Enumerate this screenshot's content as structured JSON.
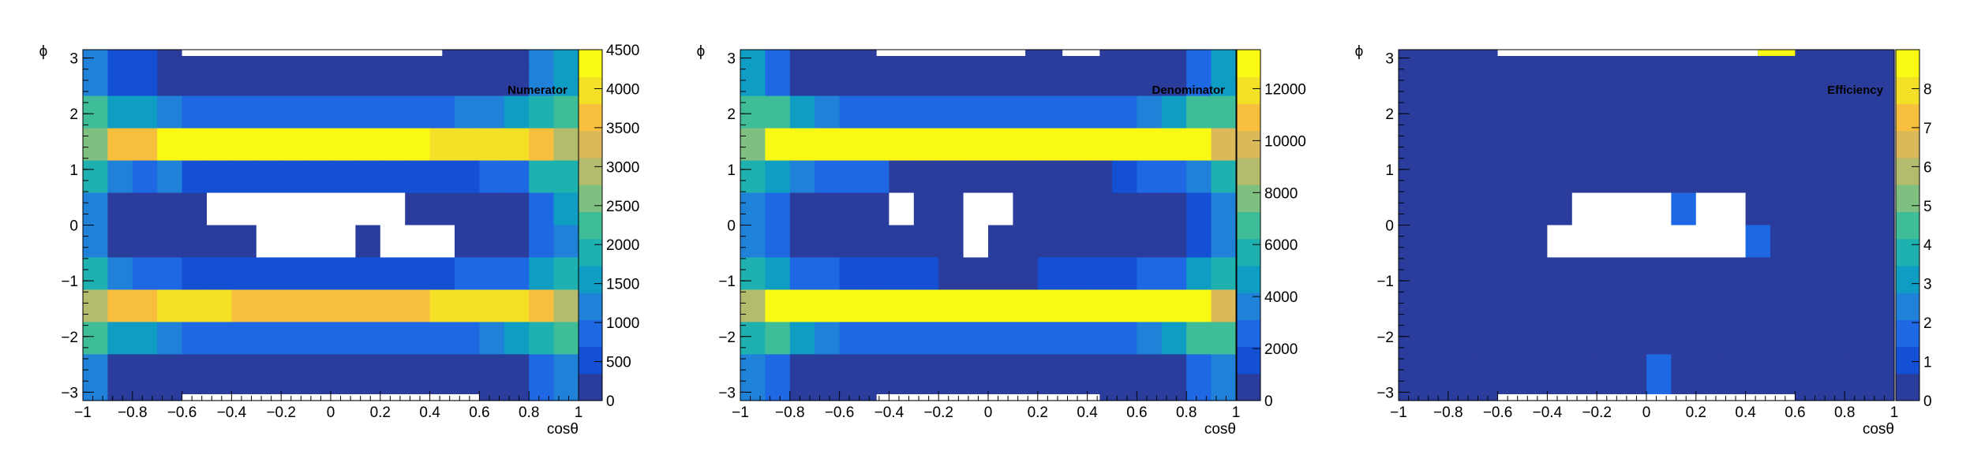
{
  "figure": {
    "background": "#ffffff"
  },
  "palette": [
    "#2b3d9c",
    "#1450d4",
    "#1f68e3",
    "#1f82d8",
    "#0f9dc4",
    "#1fb0b0",
    "#3fbc98",
    "#7fc080",
    "#b2bc6c",
    "#dbb95a",
    "#f8bf3f",
    "#f5e028",
    "#f9f915"
  ],
  "chart_data": [
    {
      "type": "heatmap",
      "title": "Numerator",
      "xlabel": "cosθ",
      "ylabel": "ϕ",
      "xlim": [
        -1,
        1
      ],
      "ylim": [
        -3.15,
        3.15
      ],
      "x_ticks": [
        "−1",
        "−0.8",
        "−0.6",
        "−0.4",
        "−0.2",
        "0",
        "0.2",
        "0.4",
        "0.6",
        "0.8",
        "1"
      ],
      "y_ticks": [
        "−3",
        "−2",
        "−1",
        "0",
        "1",
        "2",
        "3"
      ],
      "zlim": [
        0,
        4500
      ],
      "z_ticks": [
        "0",
        "500",
        "1000",
        "1500",
        "2000",
        "2500",
        "3000",
        "3500",
        "4000",
        "4500"
      ],
      "x_bins": 20,
      "y_bins": 10,
      "z": [
        [
          1200,
          600,
          600,
          300,
          300,
          300,
          300,
          300,
          300,
          300,
          300,
          300,
          300,
          300,
          300,
          300,
          300,
          300,
          1200,
          1600
        ],
        [
          2200,
          1400,
          1400,
          1100,
          900,
          900,
          900,
          900,
          900,
          900,
          900,
          900,
          900,
          1000,
          1000,
          1100,
          1100,
          1400,
          2000,
          2200
        ],
        [
          2700,
          3700,
          3700,
          4300,
          4500,
          4500,
          4500,
          4500,
          4500,
          4500,
          4500,
          4500,
          4500,
          4500,
          4100,
          4100,
          3900,
          3900,
          3800,
          2900
        ],
        [
          1900,
          1200,
          800,
          1200,
          400,
          400,
          400,
          400,
          400,
          400,
          400,
          400,
          400,
          400,
          400,
          400,
          1000,
          1000,
          1800,
          1900
        ],
        [
          1300,
          300,
          300,
          300,
          300,
          null,
          null,
          null,
          null,
          null,
          null,
          null,
          null,
          300,
          300,
          300,
          300,
          300,
          1000,
          1400
        ],
        [
          1300,
          300,
          300,
          300,
          300,
          300,
          300,
          null,
          null,
          null,
          null,
          300,
          null,
          null,
          null,
          300,
          300,
          300,
          1000,
          1300
        ],
        [
          1800,
          1300,
          900,
          900,
          400,
          400,
          400,
          400,
          400,
          400,
          400,
          400,
          400,
          400,
          400,
          900,
          900,
          1000,
          1600,
          1900
        ],
        [
          3000,
          3800,
          3800,
          4000,
          4100,
          3900,
          3600,
          3600,
          3600,
          3600,
          3600,
          3600,
          3600,
          3600,
          3900,
          4100,
          4100,
          3900,
          3500,
          3000
        ],
        [
          2200,
          1700,
          1700,
          1300,
          1000,
          1000,
          900,
          900,
          900,
          900,
          900,
          700,
          900,
          900,
          1000,
          1000,
          1300,
          1400,
          2000,
          2300
        ],
        [
          1100,
          300,
          300,
          300,
          300,
          300,
          300,
          300,
          300,
          300,
          300,
          300,
          300,
          300,
          300,
          300,
          300,
          300,
          1000,
          1300
        ]
      ],
      "empty_rows": {
        "top": {
          "x_from": -0.6,
          "x_to": 0.45
        },
        "bottom": {
          "x_from": -0.6,
          "x_to": 0.6
        }
      }
    },
    {
      "type": "heatmap",
      "title": "Denominator",
      "xlabel": "cosθ",
      "ylabel": "ϕ",
      "xlim": [
        -1,
        1
      ],
      "ylim": [
        -3.15,
        3.15
      ],
      "x_ticks": [
        "−1",
        "−0.8",
        "−0.6",
        "−0.4",
        "−0.2",
        "0",
        "0.2",
        "0.4",
        "0.6",
        "0.8",
        "1"
      ],
      "y_ticks": [
        "−3",
        "−2",
        "−1",
        "0",
        "1",
        "2",
        "3"
      ],
      "zlim": [
        0,
        13500
      ],
      "z_ticks": [
        "0",
        "2000",
        "4000",
        "6000",
        "8000",
        "10000",
        "12000"
      ],
      "x_bins": 20,
      "y_bins": 10,
      "z": [
        [
          5000,
          2500,
          1000,
          1000,
          1000,
          1000,
          1000,
          1000,
          1000,
          1000,
          1000,
          1000,
          1000,
          1000,
          1000,
          1000,
          1000,
          1000,
          2500,
          5000
        ],
        [
          6500,
          6500,
          5000,
          4000,
          3000,
          3000,
          2500,
          2500,
          2500,
          2500,
          2500,
          2500,
          2500,
          2500,
          3000,
          3000,
          4000,
          5000,
          6500,
          7000
        ],
        [
          8000,
          13500,
          13500,
          13500,
          13500,
          13500,
          13500,
          13500,
          13500,
          13500,
          13500,
          13500,
          13500,
          13500,
          13500,
          13500,
          13500,
          13500,
          13500,
          10000
        ],
        [
          5500,
          5000,
          4000,
          3000,
          2500,
          3000,
          1000,
          1000,
          1000,
          1000,
          1000,
          1000,
          1000,
          1000,
          1000,
          2000,
          2500,
          3000,
          4000,
          5500
        ],
        [
          4000,
          2500,
          1000,
          1000,
          1000,
          1000,
          null,
          1000,
          1000,
          null,
          null,
          1000,
          1000,
          1000,
          1000,
          1000,
          1000,
          1000,
          2000,
          4000
        ],
        [
          4000,
          2500,
          1000,
          1000,
          1000,
          1000,
          1000,
          1000,
          1000,
          null,
          1000,
          1000,
          1000,
          1000,
          1000,
          1000,
          1000,
          1000,
          2000,
          4000
        ],
        [
          5500,
          4500,
          3000,
          2500,
          2000,
          2000,
          2000,
          2000,
          1000,
          1000,
          1000,
          1000,
          2000,
          2000,
          2000,
          2000,
          2500,
          3000,
          4500,
          5500
        ],
        [
          8500,
          13500,
          13500,
          13500,
          13500,
          13500,
          13500,
          13500,
          13500,
          13500,
          13500,
          13500,
          13500,
          13500,
          13500,
          13500,
          13500,
          13500,
          13500,
          9500
        ],
        [
          5500,
          6500,
          5000,
          3500,
          3000,
          3000,
          2500,
          2500,
          2500,
          2500,
          2500,
          2500,
          2500,
          2500,
          2500,
          3000,
          3500,
          5000,
          6500,
          6500
        ],
        [
          4000,
          2500,
          1000,
          1000,
          1000,
          1000,
          1000,
          1000,
          1000,
          1000,
          1000,
          1000,
          1000,
          1000,
          1000,
          1000,
          1000,
          1000,
          2500,
          4000
        ]
      ],
      "empty_rows": {
        "top": {
          "x_from": -0.45,
          "x_to": 0.15
        },
        "top2": {
          "x_from": 0.3,
          "x_to": 0.45
        },
        "bottom": {
          "x_from": -0.45,
          "x_to": 0.45
        }
      }
    },
    {
      "type": "heatmap",
      "title": "Efficiency",
      "xlabel": "cosθ",
      "ylabel": "ϕ",
      "xlim": [
        -1,
        1
      ],
      "ylim": [
        -3.15,
        3.15
      ],
      "x_ticks": [
        "−1",
        "−0.8",
        "−0.6",
        "−0.4",
        "−0.2",
        "0",
        "0.2",
        "0.4",
        "0.6",
        "0.8",
        "1"
      ],
      "y_ticks": [
        "−3",
        "−2",
        "−1",
        "0",
        "1",
        "2",
        "3"
      ],
      "zlim": [
        0,
        9
      ],
      "z_ticks": [
        "0",
        "1",
        "2",
        "3",
        "4",
        "5",
        "6",
        "7",
        "8"
      ],
      "x_bins": 20,
      "y_bins": 10,
      "z": [
        [
          0.5,
          0.5,
          0.5,
          0.5,
          0.5,
          0.5,
          0.5,
          0.5,
          0.5,
          0.5,
          0.5,
          0.5,
          0.5,
          0.5,
          0.5,
          0.5,
          0.5,
          0.5,
          0.5,
          0.5
        ],
        [
          0.5,
          0.5,
          0.5,
          0.5,
          0.5,
          0.5,
          0.5,
          0.5,
          0.5,
          0.5,
          0.5,
          0.5,
          0.5,
          0.5,
          0.5,
          0.5,
          0.5,
          0.5,
          0.5,
          0.5
        ],
        [
          0.5,
          0.5,
          0.5,
          0.5,
          0.5,
          0.5,
          0.5,
          0.5,
          0.5,
          0.5,
          0.5,
          0.5,
          0.5,
          0.5,
          0.5,
          0.5,
          0.5,
          0.5,
          0.5,
          0.5
        ],
        [
          0.5,
          0.5,
          0.5,
          0.5,
          0.5,
          0.5,
          0.5,
          0.5,
          0.5,
          0.5,
          0.5,
          0.5,
          0.5,
          0.5,
          0.5,
          0.5,
          0.5,
          0.5,
          0.5,
          0.5
        ],
        [
          0.5,
          0.5,
          0.5,
          0.5,
          0.5,
          0.5,
          0.5,
          null,
          null,
          null,
          null,
          1.5,
          null,
          null,
          0.5,
          0.5,
          0.5,
          0.5,
          0.5,
          0.5
        ],
        [
          0.5,
          0.5,
          0.5,
          0.5,
          0.5,
          0.5,
          null,
          null,
          null,
          null,
          null,
          null,
          null,
          null,
          1.5,
          0.5,
          0.5,
          0.5,
          0.5,
          0.5
        ],
        [
          0.5,
          0.5,
          0.5,
          0.5,
          0.5,
          0.5,
          0.5,
          0.5,
          0.5,
          0.5,
          0.5,
          0.5,
          0.5,
          0.5,
          0.5,
          0.5,
          0.5,
          0.5,
          0.5,
          0.5
        ],
        [
          0.5,
          0.5,
          0.5,
          0.5,
          0.5,
          0.5,
          0.5,
          0.5,
          0.5,
          0.5,
          0.5,
          0.5,
          0.5,
          0.5,
          0.5,
          0.5,
          0.5,
          0.5,
          0.5,
          0.5
        ],
        [
          0.5,
          0.5,
          0.5,
          0.5,
          0.5,
          0.5,
          0.5,
          0.5,
          0.5,
          0.5,
          0.5,
          0.5,
          0.5,
          0.5,
          0.5,
          0.5,
          0.5,
          0.5,
          0.5,
          0.5
        ],
        [
          0.5,
          0.5,
          0.5,
          0.5,
          0.5,
          0.5,
          0.5,
          0.5,
          0.5,
          0.5,
          1.5,
          0.5,
          0.5,
          0.5,
          0.5,
          0.5,
          0.5,
          0.5,
          0.5,
          0.5
        ]
      ],
      "empty_rows": {
        "top": {
          "x_from": -0.6,
          "x_to": 0.45
        },
        "bottom": {
          "x_from": -0.6,
          "x_to": 0.6
        }
      },
      "extra_cells": [
        {
          "x": 0.5,
          "row": "top-strip",
          "value": 9
        }
      ]
    }
  ]
}
